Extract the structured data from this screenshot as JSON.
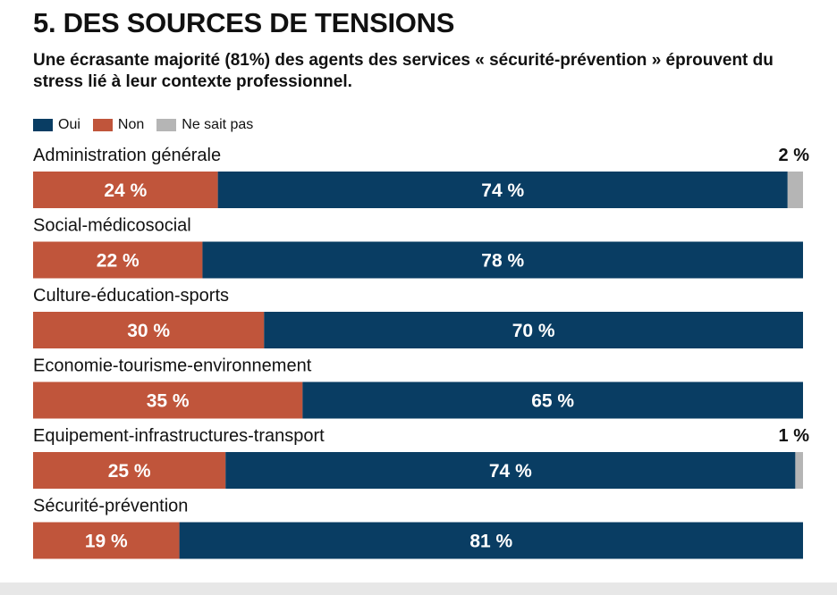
{
  "header": {
    "title": "5. DES SOURCES DE TENSIONS",
    "subtitle": "Une écrasante majorité (81%) des agents des services « sécurité-prévention » éprouvent du stress lié à leur contexte professionnel."
  },
  "colors": {
    "oui": "#093d63",
    "non": "#c0553b",
    "nsp": "#b5b5b5",
    "background": "#e7e7e7"
  },
  "chart_data": {
    "type": "bar",
    "orientation": "horizontal-stacked",
    "categories": [
      "Administration générale",
      "Social-médicosocial",
      "Culture-éducation-sports",
      "Economie-tourisme-environnement",
      "Equipement-infrastructures-transport",
      "Sécurité-prévention"
    ],
    "series": [
      {
        "name": "Non",
        "values": [
          24,
          22,
          30,
          35,
          25,
          19
        ],
        "labels": [
          "24 %",
          "22 %",
          "30 %",
          "35 %",
          "25 %",
          "19 %"
        ]
      },
      {
        "name": "Oui",
        "values": [
          74,
          78,
          70,
          65,
          74,
          81
        ],
        "labels": [
          "74 %",
          "78 %",
          "70 %",
          "65 %",
          "74 %",
          "81 %"
        ]
      },
      {
        "name": "Ne sait pas",
        "values": [
          2,
          0,
          0,
          0,
          1,
          0
        ],
        "labels": [
          "2 %",
          "",
          "",
          "",
          "1 %",
          ""
        ]
      }
    ],
    "legend_order": [
      "Oui",
      "Non",
      "Ne sait pas"
    ],
    "unit": "%",
    "xlim": [
      0,
      100
    ],
    "legend_position": "top-left",
    "grid": false
  }
}
